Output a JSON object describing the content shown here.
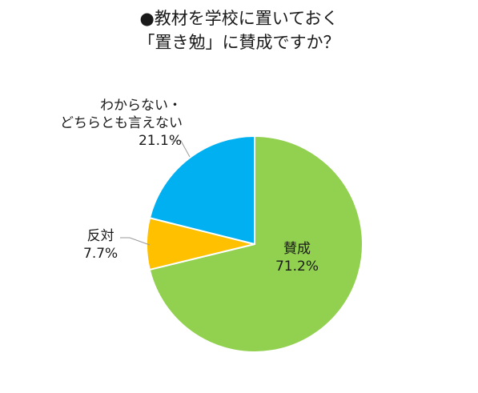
{
  "chart_data": {
    "type": "pie",
    "title_lines": [
      "●教材を学校に置いておく",
      "「置き勉」に賛成ですか？"
    ],
    "slices": [
      {
        "name": "賛成",
        "value": 71.2,
        "value_label": "71.2%",
        "color": "#92d050"
      },
      {
        "name": "反対",
        "value": 7.7,
        "value_label": "7.7%",
        "color": "#ffc000"
      },
      {
        "name_lines": [
          "わからない・",
          "どちらとも言えない"
        ],
        "value": 21.1,
        "value_label": "21.1%",
        "color": "#00b0f0"
      }
    ],
    "start": "12 o'clock",
    "direction": "clockwise"
  }
}
